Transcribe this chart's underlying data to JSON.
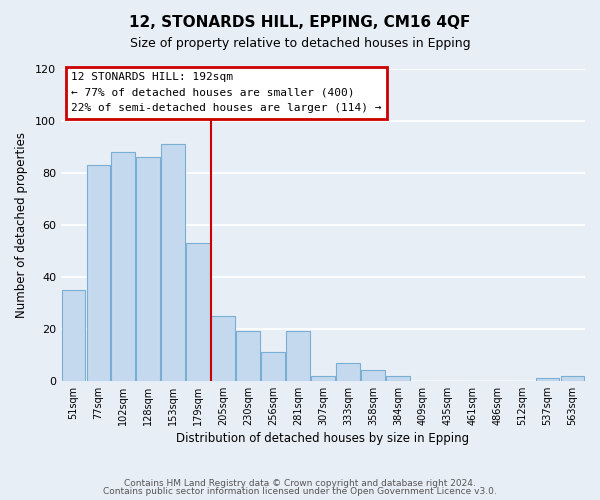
{
  "title": "12, STONARDS HILL, EPPING, CM16 4QF",
  "subtitle": "Size of property relative to detached houses in Epping",
  "xlabel": "Distribution of detached houses by size in Epping",
  "ylabel": "Number of detached properties",
  "bar_color": "#c5d9ee",
  "bar_edge_color": "#7aafd4",
  "categories": [
    "51sqm",
    "77sqm",
    "102sqm",
    "128sqm",
    "153sqm",
    "179sqm",
    "205sqm",
    "230sqm",
    "256sqm",
    "281sqm",
    "307sqm",
    "333sqm",
    "358sqm",
    "384sqm",
    "409sqm",
    "435sqm",
    "461sqm",
    "486sqm",
    "512sqm",
    "537sqm",
    "563sqm"
  ],
  "values": [
    35,
    83,
    88,
    86,
    91,
    53,
    25,
    19,
    11,
    19,
    2,
    7,
    4,
    2,
    0,
    0,
    0,
    0,
    0,
    1,
    2
  ],
  "ylim": [
    0,
    120
  ],
  "yticks": [
    0,
    20,
    40,
    60,
    80,
    100,
    120
  ],
  "vline_x": 5.5,
  "vline_color": "#cc0000",
  "annotation_title": "12 STONARDS HILL: 192sqm",
  "annotation_line1": "← 77% of detached houses are smaller (400)",
  "annotation_line2": "22% of semi-detached houses are larger (114) →",
  "annotation_box_color": "#ffffff",
  "annotation_box_edge_color": "#cc0000",
  "footer_line1": "Contains HM Land Registry data © Crown copyright and database right 2024.",
  "footer_line2": "Contains public sector information licensed under the Open Government Licence v3.0.",
  "bg_color": "#e8eef5",
  "grid_color": "#ffffff"
}
